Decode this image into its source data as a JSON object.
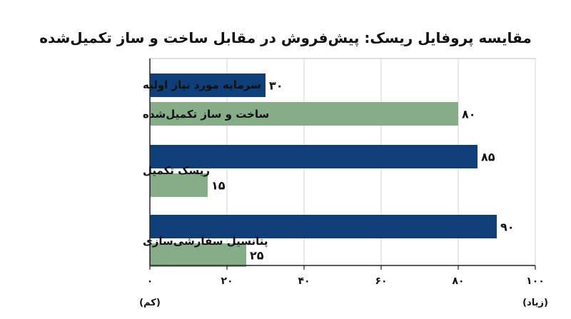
{
  "chart_data": {
    "type": "bar",
    "orientation": "horizontal",
    "title": "مقایسه پروفایل ریسک: پیش‌فروش در مقابل ساخت و ساز تکمیل‌شده",
    "xlim": [
      0,
      100
    ],
    "x_ticks": [
      "۰",
      "۲۰",
      "۴۰",
      "۶۰",
      "۸۰",
      "۱۰۰"
    ],
    "x_tick_values": [
      0,
      20,
      40,
      60,
      80,
      100
    ],
    "x_min_note": "(کم)",
    "x_max_note": "(زیاد)",
    "grid": "vertical",
    "groups": [
      "سرمایه مورد نیاز اولیه",
      "ریسک تکمیل",
      "پتانسیل سفارشی‌سازی"
    ],
    "series": [
      {
        "color": "#0f3e78",
        "values": [
          30,
          85,
          90
        ],
        "value_labels": [
          "۳۰",
          "۸۵",
          "۹۰"
        ]
      },
      {
        "color": "#86ad88",
        "values": [
          80,
          15,
          25
        ],
        "value_labels": [
          "۸۰",
          "۱۵",
          "۲۵"
        ]
      }
    ],
    "bar_labels": [
      [
        "سرمایه مورد نیاز اولیه",
        ""
      ],
      [
        "",
        "ریسک تکمیل"
      ],
      [
        "",
        "پتانسیل سفارشی‌سازی"
      ]
    ],
    "extra_labels": [
      "ساخت و ساز تکمیل‌شده"
    ]
  }
}
